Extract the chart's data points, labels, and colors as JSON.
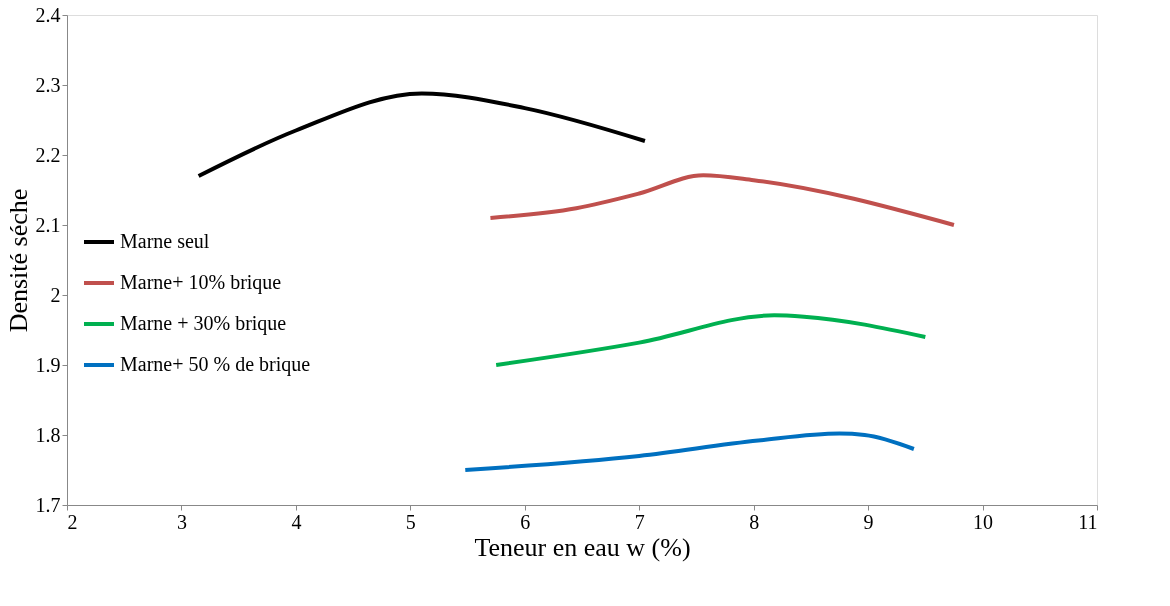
{
  "chart_data": {
    "type": "line",
    "xlabel": "Teneur en eau w (%)",
    "ylabel": "Densité séche",
    "xlim": [
      2,
      11
    ],
    "xticks": [
      2,
      3,
      4,
      5,
      6,
      7,
      8,
      9,
      10,
      11
    ],
    "ylim": [
      1.7,
      2.4
    ],
    "yticks": [
      1.7,
      1.8,
      1.9,
      2,
      2.1,
      2.2,
      2.3,
      2.4
    ],
    "grid": false,
    "legend": "left",
    "marker": "none",
    "line_style": "solid",
    "series": [
      {
        "name": "Marne seul",
        "color": "#000000",
        "x": [
          3.15,
          4.0,
          5.1,
          6.0,
          7.05
        ],
        "values": [
          2.17,
          2.235,
          2.288,
          2.267,
          2.22
        ]
      },
      {
        "name": "Marne+ 10% brique",
        "color": "#c0504d",
        "x": [
          5.7,
          6.45,
          7.0,
          7.56,
          8.0,
          9.75
        ],
        "values": [
          2.11,
          2.124,
          2.145,
          2.171,
          2.164,
          2.1
        ]
      },
      {
        "name": "Marne + 30% brique",
        "color": "#00b050",
        "x": [
          5.75,
          7.0,
          8.18,
          8.44,
          9.5
        ],
        "values": [
          1.9,
          1.932,
          1.971,
          1.969,
          1.94
        ]
      },
      {
        "name": "Marne+ 50 % de brique",
        "color": "#0070c0",
        "x": [
          5.48,
          7.0,
          8.04,
          8.75,
          8.97,
          9.4
        ],
        "values": [
          1.75,
          1.77,
          1.792,
          1.802,
          1.8,
          1.78
        ]
      }
    ]
  }
}
